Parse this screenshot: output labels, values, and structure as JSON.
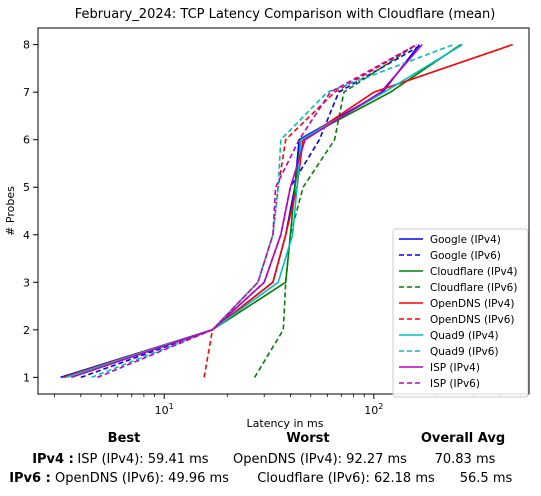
{
  "chart_data": {
    "type": "line",
    "title": "February_2024: TCP Latency Comparison with Cloudflare (mean)",
    "xlabel": "Latency in ms",
    "ylabel": "# Probes",
    "x_scale": "log",
    "xlim": [
      2.5,
      550
    ],
    "ylim": [
      0.65,
      8.35
    ],
    "x_ticks": [
      {
        "value": 10,
        "label": "10^1"
      },
      {
        "value": 100,
        "label": "10^2"
      }
    ],
    "y_ticks": [
      1,
      2,
      3,
      4,
      5,
      6,
      7,
      8
    ],
    "grid": false,
    "legend_position": "lower-right",
    "series": [
      {
        "name": "Google (IPv4)",
        "color": "#0000ff",
        "style": "solid",
        "points": [
          [
            3.2,
            1
          ],
          [
            17,
            2
          ],
          [
            33,
            3
          ],
          [
            38,
            4
          ],
          [
            42,
            5
          ],
          [
            44,
            6
          ],
          [
            110,
            7
          ],
          [
            165,
            8
          ]
        ]
      },
      {
        "name": "Google (IPv6)",
        "color": "#0000ff",
        "style": "dashed",
        "points": [
          [
            4,
            1
          ],
          [
            17,
            2
          ],
          [
            30,
            3
          ],
          [
            36,
            4
          ],
          [
            40,
            5
          ],
          [
            55,
            6
          ],
          [
            68,
            7
          ],
          [
            170,
            8
          ]
        ]
      },
      {
        "name": "Cloudflare (IPv4)",
        "color": "#008000",
        "style": "solid",
        "points": [
          [
            3.3,
            1
          ],
          [
            17,
            2
          ],
          [
            38,
            3
          ],
          [
            40,
            4
          ],
          [
            42,
            5
          ],
          [
            45,
            6
          ],
          [
            120,
            7
          ],
          [
            260,
            8
          ]
        ]
      },
      {
        "name": "Cloudflare (IPv6)",
        "color": "#008000",
        "style": "dashed",
        "points": [
          [
            27,
            1
          ],
          [
            37,
            2
          ],
          [
            38,
            3
          ],
          [
            40,
            4
          ],
          [
            46,
            5
          ],
          [
            65,
            6
          ],
          [
            72,
            7
          ],
          [
            160,
            8
          ]
        ]
      },
      {
        "name": "OpenDNS (IPv4)",
        "color": "#ff0000",
        "style": "solid",
        "points": [
          [
            3.3,
            1
          ],
          [
            17,
            2
          ],
          [
            33,
            3
          ],
          [
            38,
            4
          ],
          [
            43,
            5
          ],
          [
            46,
            6
          ],
          [
            100,
            7
          ],
          [
            460,
            8
          ]
        ]
      },
      {
        "name": "OpenDNS (IPv6)",
        "color": "#ff0000",
        "style": "dashed",
        "points": [
          [
            15.5,
            1
          ],
          [
            17,
            2
          ],
          [
            28,
            3
          ],
          [
            33,
            4
          ],
          [
            35,
            5
          ],
          [
            38,
            6
          ],
          [
            65,
            7
          ],
          [
            160,
            8
          ]
        ]
      },
      {
        "name": "Quad9 (IPv4)",
        "color": "#00bfbf",
        "style": "solid",
        "points": [
          [
            3.4,
            1
          ],
          [
            17,
            2
          ],
          [
            35,
            3
          ],
          [
            41,
            4
          ],
          [
            43,
            5
          ],
          [
            45,
            6
          ],
          [
            112,
            7
          ],
          [
            265,
            8
          ]
        ]
      },
      {
        "name": "Quad9 (IPv6)",
        "color": "#00bfbf",
        "style": "dashed",
        "points": [
          [
            4.5,
            1
          ],
          [
            17,
            2
          ],
          [
            28,
            3
          ],
          [
            33,
            4
          ],
          [
            35,
            5
          ],
          [
            36,
            6
          ],
          [
            60,
            7
          ],
          [
            240,
            8
          ]
        ]
      },
      {
        "name": "ISP (IPv4)",
        "color": "#bf00bf",
        "style": "solid",
        "points": [
          [
            3.6,
            1
          ],
          [
            17,
            2
          ],
          [
            30,
            3
          ],
          [
            36,
            4
          ],
          [
            40,
            5
          ],
          [
            47,
            6
          ],
          [
            108,
            7
          ],
          [
            170,
            8
          ]
        ]
      },
      {
        "name": "ISP (IPv6)",
        "color": "#bf00bf",
        "style": "dashed",
        "points": [
          [
            4.8,
            1
          ],
          [
            17,
            2
          ],
          [
            28,
            3
          ],
          [
            33,
            4
          ],
          [
            34,
            5
          ],
          [
            44,
            6
          ],
          [
            62,
            7
          ],
          [
            160,
            8
          ]
        ]
      }
    ]
  },
  "summary": {
    "headers": {
      "best": "Best",
      "worst": "Worst",
      "avg": "Overall Avg"
    },
    "rows": [
      {
        "label": "IPv4 :",
        "best": "ISP (IPv4): 59.41 ms",
        "worst": "OpenDNS (IPv4): 92.27 ms",
        "avg": "70.83 ms"
      },
      {
        "label": "IPv6 :",
        "best": "OpenDNS (IPv6): 49.96 ms",
        "worst": "Cloudflare (IPv6): 62.18 ms",
        "avg": "56.5 ms"
      }
    ]
  }
}
